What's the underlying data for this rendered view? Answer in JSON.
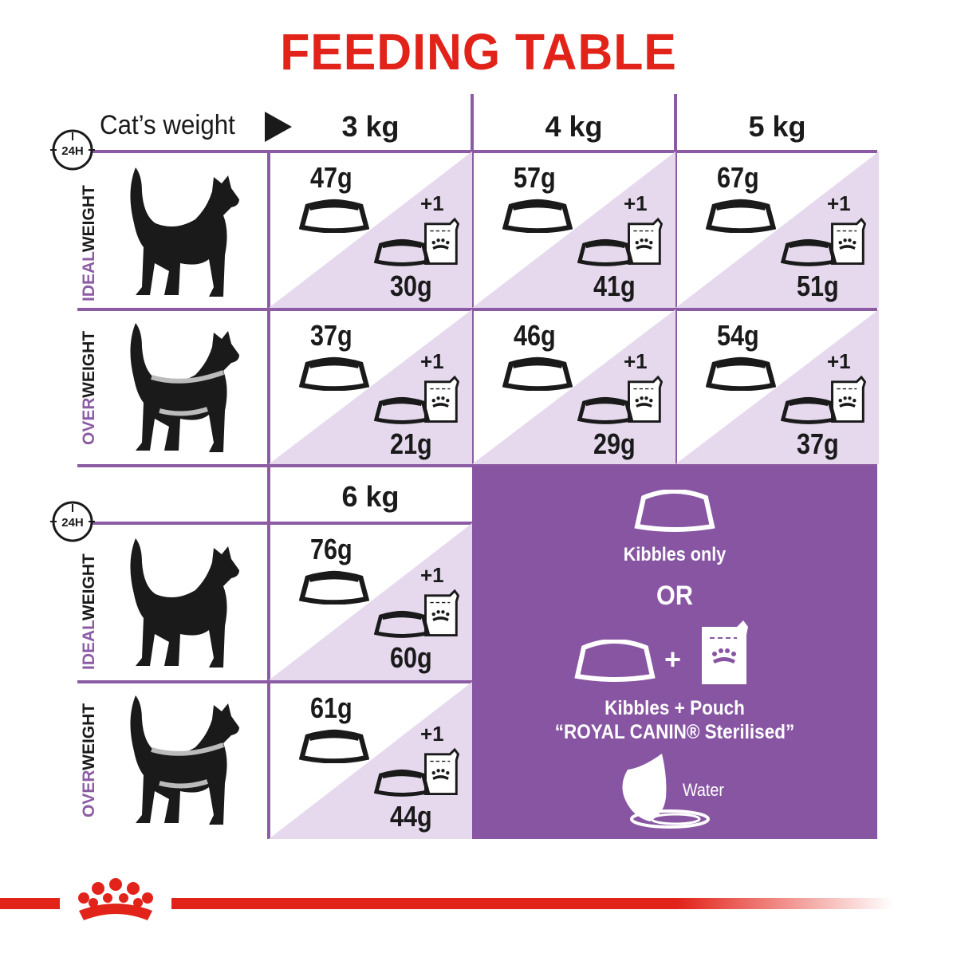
{
  "title": "FEEDING TABLE",
  "header": {
    "cats_weight_label": "Cat’s weight",
    "icon": "24h-clock-icon",
    "clock_label": "24H"
  },
  "weights": [
    "3 kg",
    "4 kg",
    "5 kg",
    "6 kg"
  ],
  "row_labels": [
    {
      "accent": "IDEAL",
      "rest": "WEIGHT"
    },
    {
      "accent": "OVER",
      "rest": "WEIGHT"
    },
    {
      "accent": "IDEAL",
      "rest": "WEIGHT"
    },
    {
      "accent": "OVER",
      "rest": "WEIGHT"
    }
  ],
  "table": {
    "kibbles_only": [
      [
        "47g",
        "57g",
        "67g"
      ],
      [
        "37g",
        "46g",
        "54g"
      ],
      [
        "76g"
      ],
      [
        "61g"
      ]
    ],
    "pouch_count": "+1",
    "kibbles_with_pouch": [
      [
        "30g",
        "41g",
        "51g"
      ],
      [
        "21g",
        "29g",
        "37g"
      ],
      [
        "60g"
      ],
      [
        "44g"
      ]
    ]
  },
  "legend": {
    "kibbles_only": "Kibbles only",
    "or": "OR",
    "plus": "+",
    "kibbles_pouch": "Kibbles + Pouch",
    "product": "“ROYAL CANIN® Sterilised”",
    "water": "Water"
  },
  "colors": {
    "brand_red": "#e2231a",
    "purple": "#8b5ca3",
    "panel_purple": "#8755a2",
    "light_purple": "#e6d9ee"
  }
}
